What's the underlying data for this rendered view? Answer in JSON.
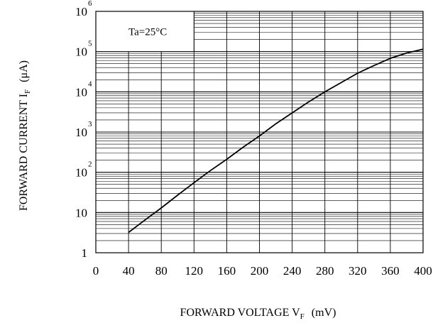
{
  "chart_data": {
    "type": "line",
    "title": "",
    "xlabel": "FORWARD VOLTAGE V",
    "xlabel_subscript": "F",
    "xlabel_unit": "(mV)",
    "ylabel": "FORWARD CURRENT I",
    "ylabel_subscript": "F",
    "ylabel_unit": "(μA)",
    "x_scale": "linear",
    "y_scale": "log",
    "xlim": [
      0,
      400
    ],
    "ylim": [
      1,
      1000000
    ],
    "x_ticks": [
      0,
      40,
      80,
      120,
      160,
      200,
      240,
      280,
      320,
      360,
      400
    ],
    "x_tick_labels": [
      "0",
      "40",
      "80",
      "120",
      "160",
      "200",
      "240",
      "280",
      "320",
      "360",
      "400"
    ],
    "y_ticks": [
      {
        "value": 1,
        "label": "1",
        "sup": ""
      },
      {
        "value": 10,
        "label": "10",
        "sup": ""
      },
      {
        "value": 100,
        "label": "10",
        "sup": "2"
      },
      {
        "value": 1000,
        "label": "10",
        "sup": "3"
      },
      {
        "value": 10000,
        "label": "10",
        "sup": "4"
      },
      {
        "value": 100000,
        "label": "10",
        "sup": "5"
      },
      {
        "value": 1000000,
        "label": "10",
        "sup": "6"
      }
    ],
    "grid": true,
    "annotation": "Ta=25°C",
    "series": [
      {
        "color": "#000000",
        "x": [
          40,
          60,
          80,
          100,
          120,
          140,
          160,
          180,
          200,
          220,
          240,
          260,
          280,
          300,
          320,
          340,
          360,
          380,
          400
        ],
        "y": [
          3.2,
          6.5,
          13,
          27,
          55,
          110,
          210,
          420,
          800,
          1600,
          3000,
          5600,
          10000,
          17000,
          29000,
          45000,
          68000,
          92000,
          115000
        ]
      }
    ]
  }
}
